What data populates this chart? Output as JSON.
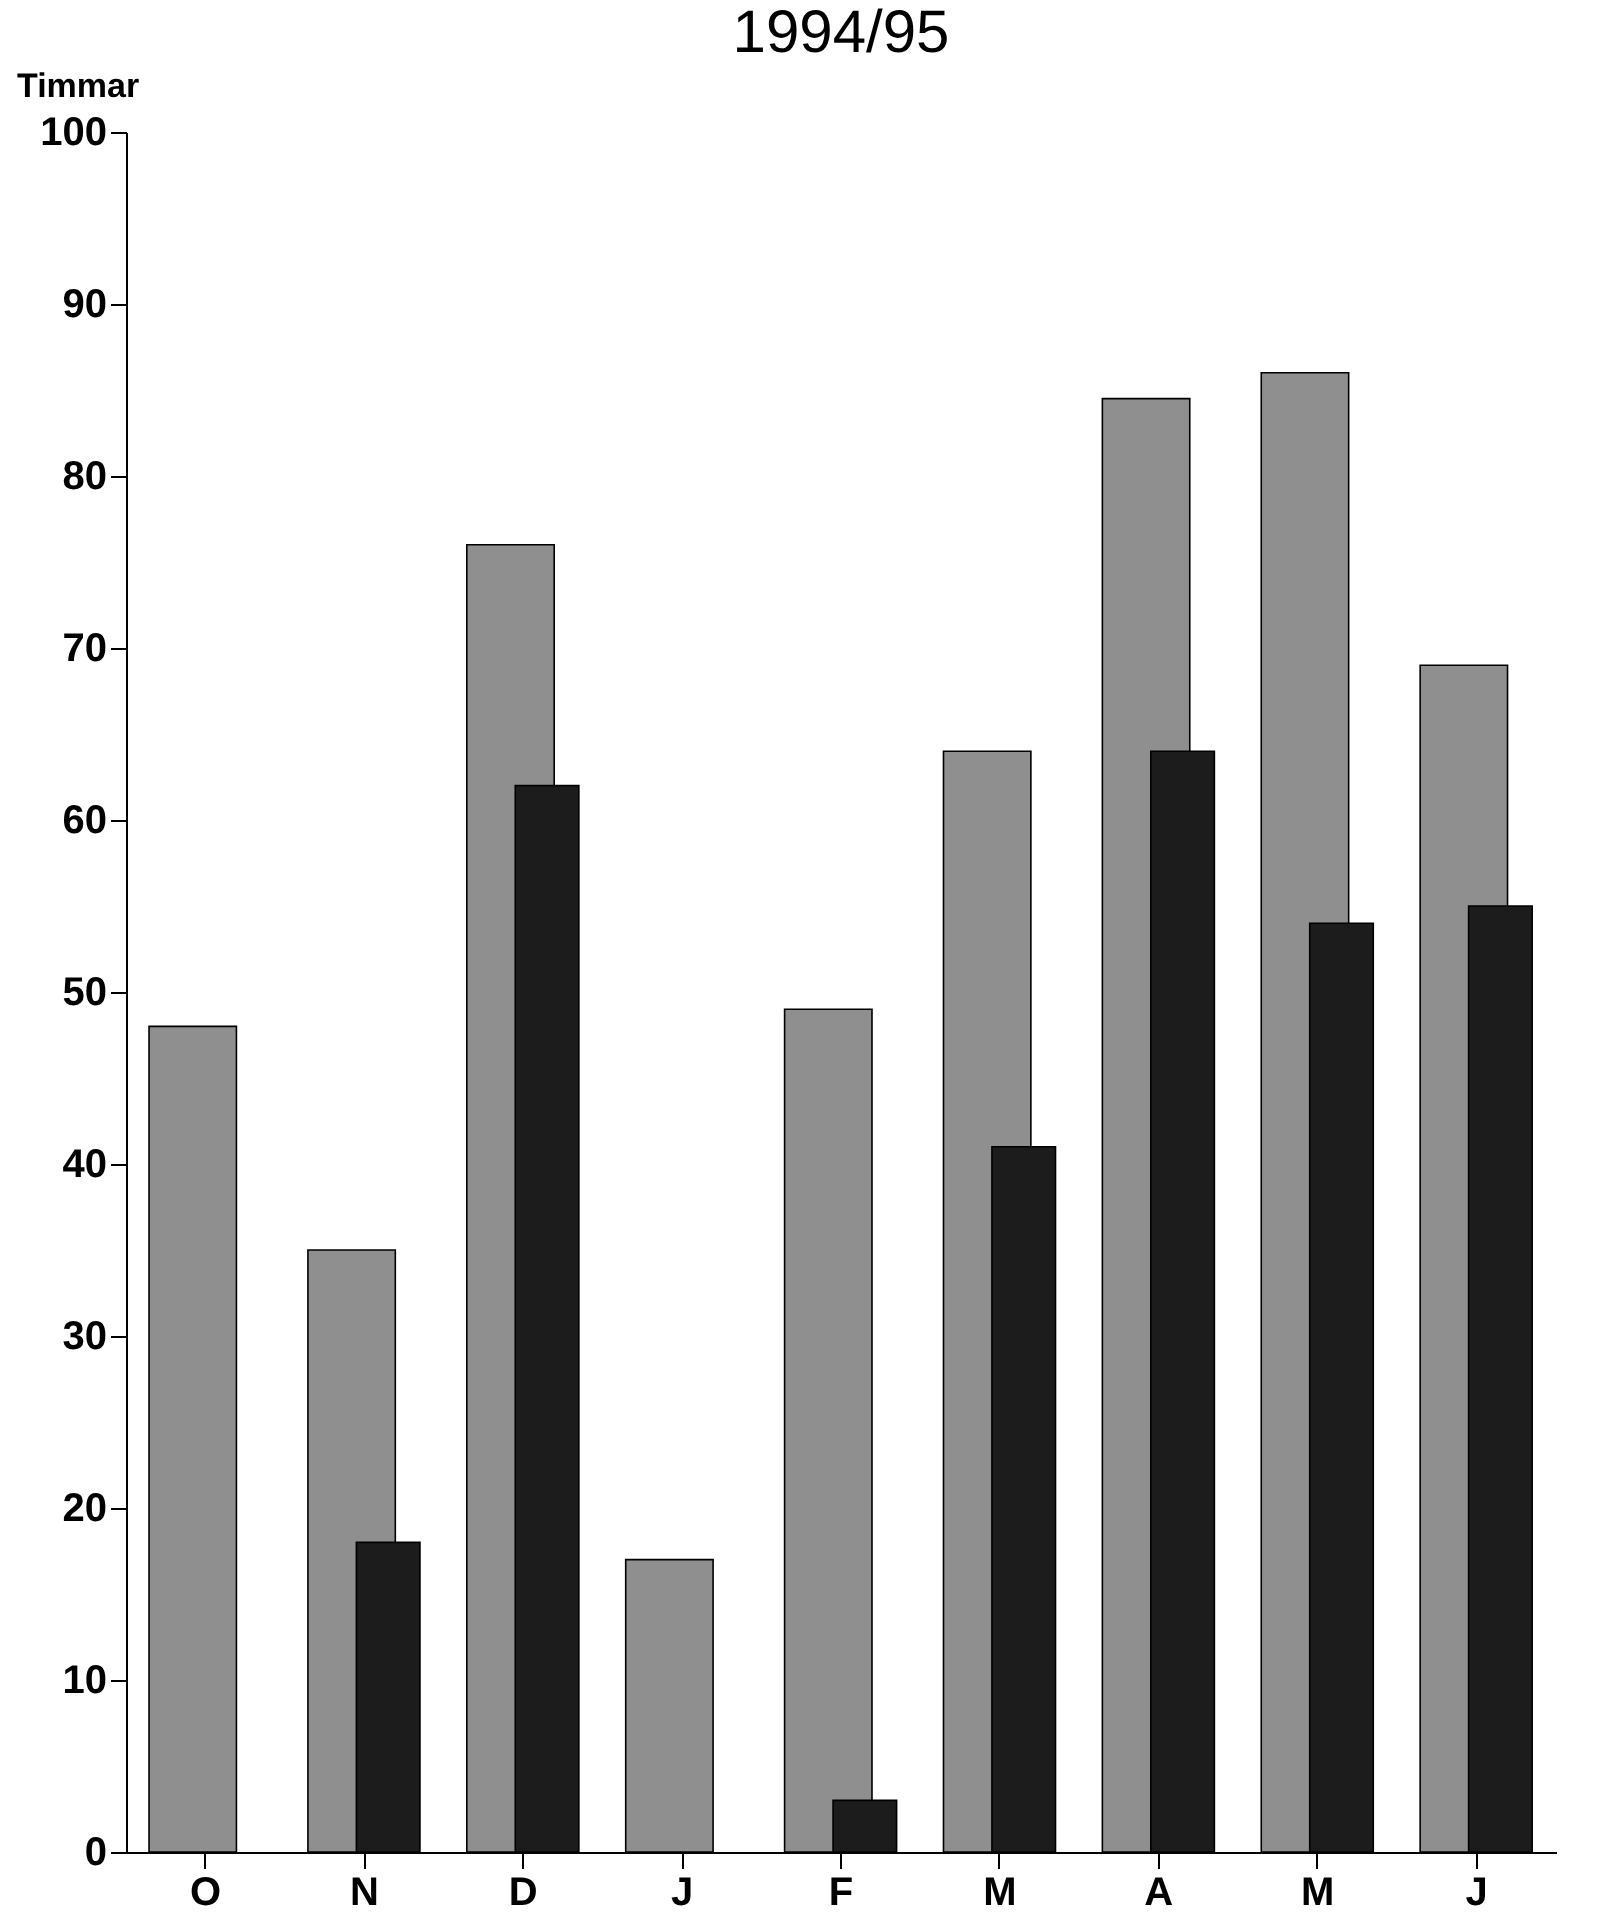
{
  "chart_data": {
    "type": "bar",
    "title": "1994/95",
    "ylabel": "Timmar",
    "categories": [
      "O",
      "N",
      "D",
      "J",
      "F",
      "M",
      "A",
      "M",
      "J"
    ],
    "series": [
      {
        "color": "#8f8f8f",
        "values": [
          48,
          35,
          76,
          17,
          49,
          64,
          84.5,
          86,
          69
        ]
      },
      {
        "color": "#1c1c1c",
        "values": [
          null,
          18,
          62,
          null,
          3,
          41,
          64,
          54,
          55
        ]
      }
    ],
    "ylim": [
      0,
      100
    ],
    "yticks": [
      0,
      10,
      20,
      30,
      40,
      50,
      60,
      70,
      80,
      90,
      100
    ],
    "grid": false,
    "legend": false
  }
}
